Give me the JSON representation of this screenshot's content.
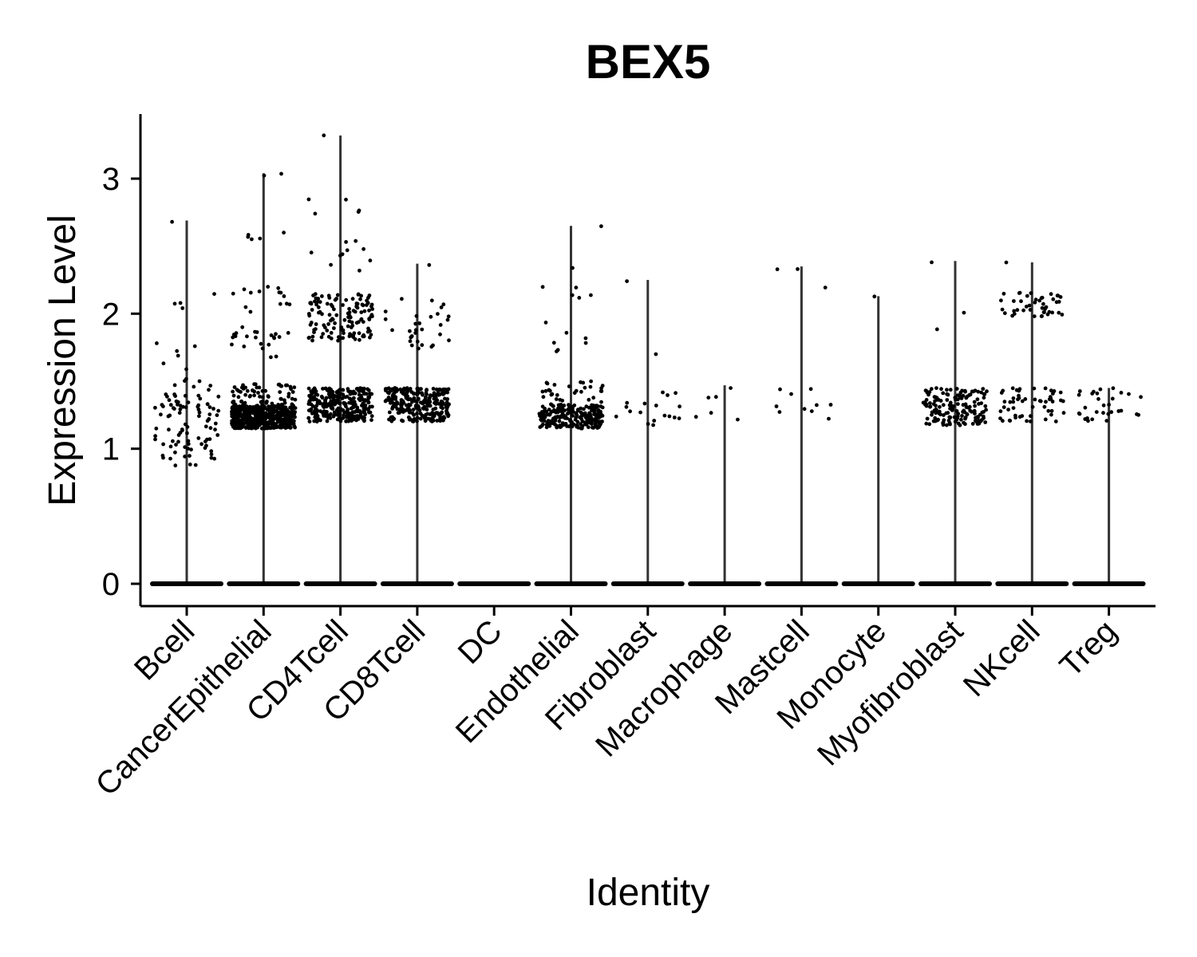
{
  "chart_data": {
    "type": "scatter",
    "subtype": "violin-jitter",
    "title": "BEX5",
    "xlabel": "Identity",
    "ylabel": "Expression Level",
    "ylim": [
      -0.17,
      3.5
    ],
    "yticks": [
      0,
      1,
      2,
      3
    ],
    "grid": false,
    "legend": "none",
    "categories": [
      "Bcell",
      "CancerEpithelial",
      "CD4Tcell",
      "CD8Tcell",
      "DC",
      "Endothelial",
      "Fibroblast",
      "Macrophage",
      "Mastcell",
      "Monocyte",
      "Myofibroblast",
      "NKcell",
      "Treg"
    ],
    "max_values": [
      2.69,
      3.04,
      3.32,
      2.37,
      0.0,
      2.65,
      2.25,
      1.47,
      2.35,
      2.13,
      2.39,
      2.38,
      1.45
    ],
    "clusters": [
      {
        "category": "Bcell",
        "ranges": [
          [
            0.87,
            1.52,
            95
          ],
          [
            1.55,
            1.85,
            6
          ],
          [
            1.95,
            2.16,
            4
          ],
          [
            2.6,
            2.69,
            1
          ]
        ]
      },
      {
        "category": "CancerEpithelial",
        "ranges": [
          [
            1.15,
            1.32,
            500
          ],
          [
            1.32,
            1.48,
            70
          ],
          [
            1.65,
            1.9,
            22
          ],
          [
            2.0,
            2.2,
            14
          ],
          [
            2.55,
            2.62,
            5
          ],
          [
            3.02,
            3.04,
            2
          ]
        ]
      },
      {
        "category": "CD4Tcell",
        "ranges": [
          [
            1.2,
            1.45,
            300
          ],
          [
            1.8,
            2.15,
            130
          ],
          [
            2.3,
            2.55,
            10
          ],
          [
            2.7,
            2.85,
            5
          ],
          [
            3.32,
            3.32,
            1
          ]
        ]
      },
      {
        "category": "CD8Tcell",
        "ranges": [
          [
            1.2,
            1.45,
            260
          ],
          [
            1.73,
            2.12,
            30
          ],
          [
            2.35,
            2.37,
            1
          ]
        ]
      },
      {
        "category": "DC",
        "ranges": []
      },
      {
        "category": "Endothelial",
        "ranges": [
          [
            1.15,
            1.33,
            230
          ],
          [
            1.33,
            1.5,
            30
          ],
          [
            1.72,
            2.2,
            12
          ],
          [
            2.3,
            2.34,
            1
          ],
          [
            2.64,
            2.65,
            1
          ]
        ]
      },
      {
        "category": "Fibroblast",
        "ranges": [
          [
            1.16,
            1.45,
            18
          ],
          [
            1.7,
            1.7,
            1
          ],
          [
            2.24,
            2.25,
            1
          ]
        ]
      },
      {
        "category": "Macrophage",
        "ranges": [
          [
            1.2,
            1.47,
            6
          ]
        ]
      },
      {
        "category": "Mastcell",
        "ranges": [
          [
            1.19,
            1.45,
            10
          ],
          [
            2.14,
            2.35,
            3
          ]
        ]
      },
      {
        "category": "Monocyte",
        "ranges": [
          [
            2.12,
            2.13,
            1
          ]
        ]
      },
      {
        "category": "Myofibroblast",
        "ranges": [
          [
            1.17,
            1.45,
            160
          ],
          [
            1.86,
            2.09,
            2
          ],
          [
            2.38,
            2.39,
            1
          ]
        ]
      },
      {
        "category": "NKcell",
        "ranges": [
          [
            1.2,
            1.45,
            55
          ],
          [
            1.98,
            2.16,
            45
          ],
          [
            2.37,
            2.38,
            1
          ]
        ]
      },
      {
        "category": "Treg",
        "ranges": [
          [
            1.2,
            1.45,
            30
          ]
        ]
      }
    ]
  }
}
